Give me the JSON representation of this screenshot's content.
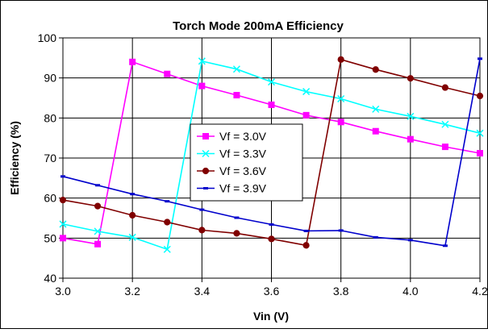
{
  "chart_data": {
    "type": "line",
    "title": "Torch Mode 200mA Efficiency",
    "xlabel": "Vin (V)",
    "ylabel": "Efficiency (%)",
    "xlim": [
      3.0,
      4.2
    ],
    "ylim": [
      40,
      100
    ],
    "xticks": [
      3.0,
      3.2,
      3.4,
      3.6,
      3.8,
      4.0,
      4.2
    ],
    "xtick_labels": [
      "3.0",
      "3.2",
      "3.4",
      "3.6",
      "3.8",
      "4.0",
      "4.2"
    ],
    "yticks": [
      40,
      50,
      60,
      70,
      80,
      90,
      100
    ],
    "ytick_labels": [
      "40",
      "50",
      "60",
      "70",
      "80",
      "90",
      "100"
    ],
    "grid": true,
    "legend_position": "center",
    "series": [
      {
        "name": "Vf = 3.0V",
        "color": "#FF00FF",
        "marker": "square",
        "x": [
          3.0,
          3.1,
          3.2,
          3.3,
          3.4,
          3.5,
          3.6,
          3.7,
          3.8,
          3.9,
          4.0,
          4.1,
          4.2
        ],
        "y": [
          50.0,
          48.5,
          94.0,
          91.0,
          88.0,
          85.7,
          83.3,
          80.7,
          79.0,
          76.7,
          74.7,
          72.8,
          71.2
        ]
      },
      {
        "name": "Vf = 3.3V",
        "color": "#00FFFF",
        "marker": "x",
        "x": [
          3.0,
          3.1,
          3.2,
          3.3,
          3.4,
          3.5,
          3.6,
          3.7,
          3.8,
          3.9,
          4.0,
          4.1,
          4.2
        ],
        "y": [
          53.5,
          51.7,
          50.2,
          47.2,
          94.2,
          92.2,
          89.0,
          86.6,
          84.8,
          82.2,
          80.4,
          78.4,
          76.2
        ]
      },
      {
        "name": "Vf = 3.6V",
        "color": "#800000",
        "marker": "circle",
        "x": [
          3.0,
          3.1,
          3.2,
          3.3,
          3.4,
          3.5,
          3.6,
          3.7,
          3.8,
          3.9,
          4.0,
          4.1,
          4.2
        ],
        "y": [
          59.5,
          58.0,
          55.7,
          54.0,
          52.0,
          51.2,
          49.8,
          48.2,
          94.6,
          92.1,
          89.9,
          87.6,
          85.5
        ]
      },
      {
        "name": "Vf = 3.9V",
        "color": "#0000CC",
        "marker": "dash",
        "x": [
          3.0,
          3.1,
          3.2,
          3.3,
          3.4,
          3.5,
          3.6,
          3.7,
          3.8,
          3.9,
          4.0,
          4.1,
          4.2
        ],
        "y": [
          65.4,
          63.2,
          61.0,
          59.2,
          57.1,
          55.1,
          53.4,
          51.8,
          51.9,
          50.2,
          49.5,
          48.1,
          94.8
        ]
      }
    ]
  }
}
